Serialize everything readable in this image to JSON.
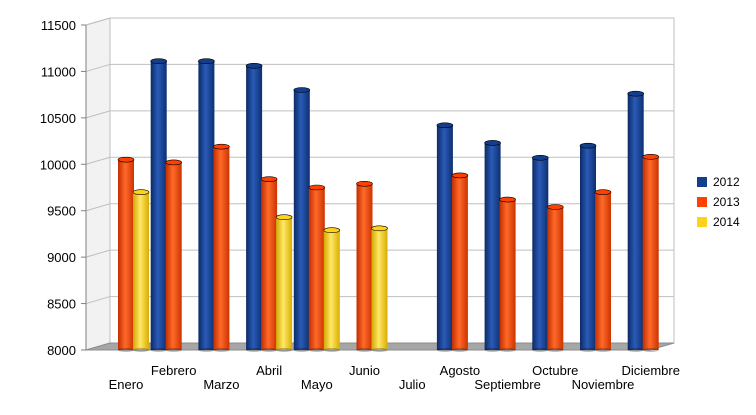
{
  "chart_data": {
    "type": "bar",
    "title": "",
    "xlabel": "",
    "ylabel": "",
    "categories": [
      "Enero",
      "Febrero",
      "Marzo",
      "Abril",
      "Mayo",
      "Junio",
      "Julio",
      "Agosto",
      "Septiembre",
      "Octubre",
      "Noviembre",
      "Diciembre"
    ],
    "series": [
      {
        "name": "2012",
        "color": "#123e8c",
        "values": [
          null,
          11110,
          11110,
          11060,
          10800,
          null,
          null,
          10420,
          10230,
          10070,
          10200,
          10760
        ]
      },
      {
        "name": "2013",
        "color": "#ff4000",
        "values": [
          10050,
          10020,
          10190,
          9840,
          9750,
          9790,
          null,
          9880,
          9620,
          9540,
          9700,
          10080
        ]
      },
      {
        "name": "2014",
        "color": "#ffd21a",
        "values": [
          9700,
          null,
          null,
          9430,
          9290,
          9310,
          null,
          null,
          null,
          null,
          null,
          null
        ]
      }
    ],
    "ylim": [
      8000,
      11500
    ],
    "yticks": [
      8000,
      8500,
      9000,
      9500,
      10000,
      10500,
      11000,
      11500
    ],
    "legend_position": "right",
    "grid": true
  }
}
